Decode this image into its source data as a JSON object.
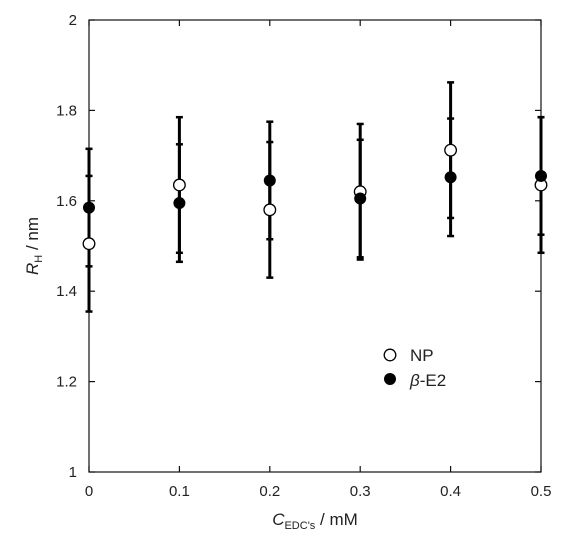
{
  "chart_data": {
    "type": "scatter",
    "x": [
      0,
      0.1,
      0.2,
      0.3,
      0.4,
      0.5
    ],
    "xlim": [
      0,
      0.5
    ],
    "ylim": [
      1,
      2
    ],
    "xticks": [
      "0",
      "0.1",
      "0.2",
      "0.3",
      "0.4",
      "0.5"
    ],
    "yticks": [
      "1",
      "1.2",
      "1.4",
      "1.6",
      "1.8",
      "2"
    ],
    "xlabel": {
      "main": "C",
      "sub": "EDC's",
      "unit": " / mM"
    },
    "ylabel": {
      "main": "R",
      "sub": "H",
      "unit": " / nm"
    },
    "legend_position": "lower-right",
    "grid": false,
    "series": [
      {
        "name": "NP",
        "marker": "open-circle",
        "color": "#000000",
        "y": [
          1.505,
          1.635,
          1.58,
          1.62,
          1.712,
          1.635
        ],
        "err": [
          0.15,
          0.15,
          0.15,
          0.15,
          0.15,
          0.15
        ]
      },
      {
        "name": "β-E2",
        "name_prefix": "β",
        "name_suffix": "-E2",
        "marker": "filled-circle",
        "color": "#000000",
        "y": [
          1.585,
          1.595,
          1.645,
          1.605,
          1.652,
          1.655
        ],
        "err": [
          0.13,
          0.13,
          0.13,
          0.13,
          0.13,
          0.13
        ]
      }
    ]
  }
}
